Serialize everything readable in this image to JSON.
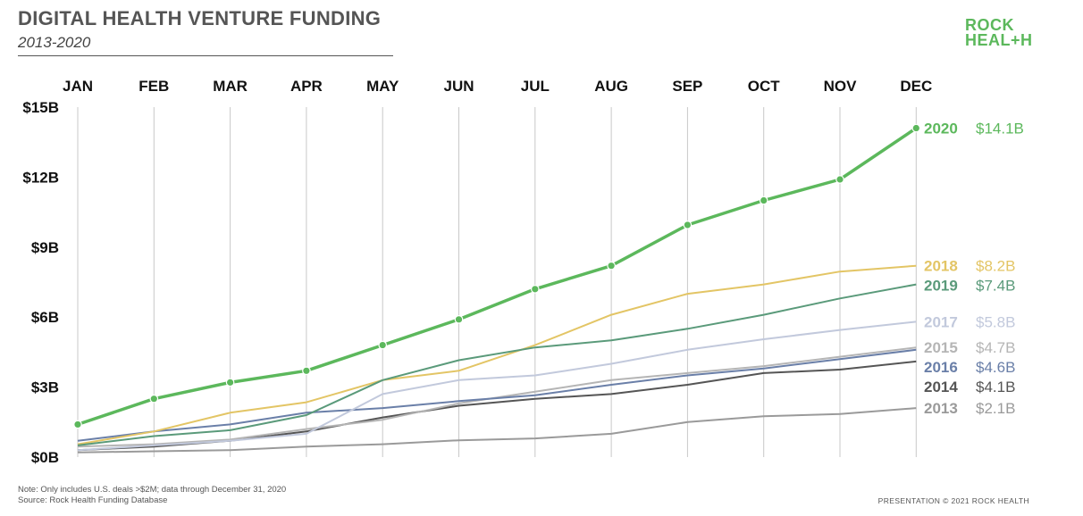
{
  "header": {
    "title": "DIGITAL HEALTH VENTURE FUNDING",
    "subtitle": "2013-2020"
  },
  "logo": {
    "line1": "ROCK",
    "line2_a": "HEAL",
    "line2_plus": "+",
    "line2_b": "H"
  },
  "footer": {
    "note": "Note: Only includes U.S. deals >$2M; data through December 31, 2020",
    "source": "Source: Rock Health Funding Database",
    "copyright": "PRESENTATION © 2021 ROCK HEALTH"
  },
  "chart_data": {
    "type": "line",
    "title": "DIGITAL HEALTH VENTURE FUNDING",
    "subtitle": "2013-2020",
    "categories": [
      "JAN",
      "FEB",
      "MAR",
      "APR",
      "MAY",
      "JUN",
      "JUL",
      "AUG",
      "SEP",
      "OCT",
      "NOV",
      "DEC"
    ],
    "ylim": [
      0,
      15
    ],
    "y_ticks": [
      0,
      3,
      6,
      9,
      12,
      15
    ],
    "y_tick_labels": [
      "$0B",
      "$3B",
      "$6B",
      "$9B",
      "$12B",
      "$15B"
    ],
    "grid": "vertical",
    "series": [
      {
        "name": "2013",
        "total": "$2.1B",
        "color": "#9a9a9a",
        "width": 2,
        "markers": false,
        "values": [
          0.2,
          0.25,
          0.3,
          0.45,
          0.55,
          0.72,
          0.8,
          1.0,
          1.5,
          1.75,
          1.85,
          2.1
        ]
      },
      {
        "name": "2014",
        "total": "$4.1B",
        "color": "#555555",
        "width": 2,
        "markers": false,
        "values": [
          0.3,
          0.45,
          0.7,
          1.1,
          1.7,
          2.2,
          2.5,
          2.7,
          3.1,
          3.6,
          3.75,
          4.1
        ]
      },
      {
        "name": "2015",
        "total": "$4.7B",
        "color": "#b5b5b5",
        "width": 2,
        "markers": false,
        "values": [
          0.45,
          0.55,
          0.75,
          1.2,
          1.6,
          2.3,
          2.8,
          3.3,
          3.6,
          3.9,
          4.3,
          4.7
        ]
      },
      {
        "name": "2016",
        "total": "$4.6B",
        "color": "#6a7fa8",
        "width": 2,
        "markers": false,
        "values": [
          0.7,
          1.1,
          1.4,
          1.9,
          2.1,
          2.4,
          2.65,
          3.1,
          3.5,
          3.8,
          4.2,
          4.6
        ]
      },
      {
        "name": "2017",
        "total": "$5.8B",
        "color": "#c2c9dc",
        "width": 2,
        "markers": false,
        "values": [
          0.3,
          0.5,
          0.7,
          1.0,
          2.7,
          3.3,
          3.5,
          4.0,
          4.6,
          5.05,
          5.45,
          5.8
        ]
      },
      {
        "name": "2018",
        "total": "$8.2B",
        "color": "#e3c565",
        "width": 2,
        "markers": false,
        "values": [
          0.55,
          1.1,
          1.9,
          2.35,
          3.3,
          3.7,
          4.8,
          6.1,
          7.0,
          7.4,
          7.95,
          8.2
        ]
      },
      {
        "name": "2019",
        "total": "$7.4B",
        "color": "#5a9a7a",
        "width": 2,
        "markers": false,
        "values": [
          0.5,
          0.9,
          1.15,
          1.8,
          3.3,
          4.15,
          4.7,
          5.0,
          5.5,
          6.1,
          6.8,
          7.4
        ]
      },
      {
        "name": "2020",
        "total": "$14.1B",
        "color": "#5cb85c",
        "width": 3.5,
        "markers": true,
        "values": [
          1.4,
          2.5,
          3.2,
          3.7,
          4.8,
          5.9,
          7.2,
          8.2,
          9.95,
          11.0,
          11.9,
          14.1
        ]
      }
    ]
  }
}
